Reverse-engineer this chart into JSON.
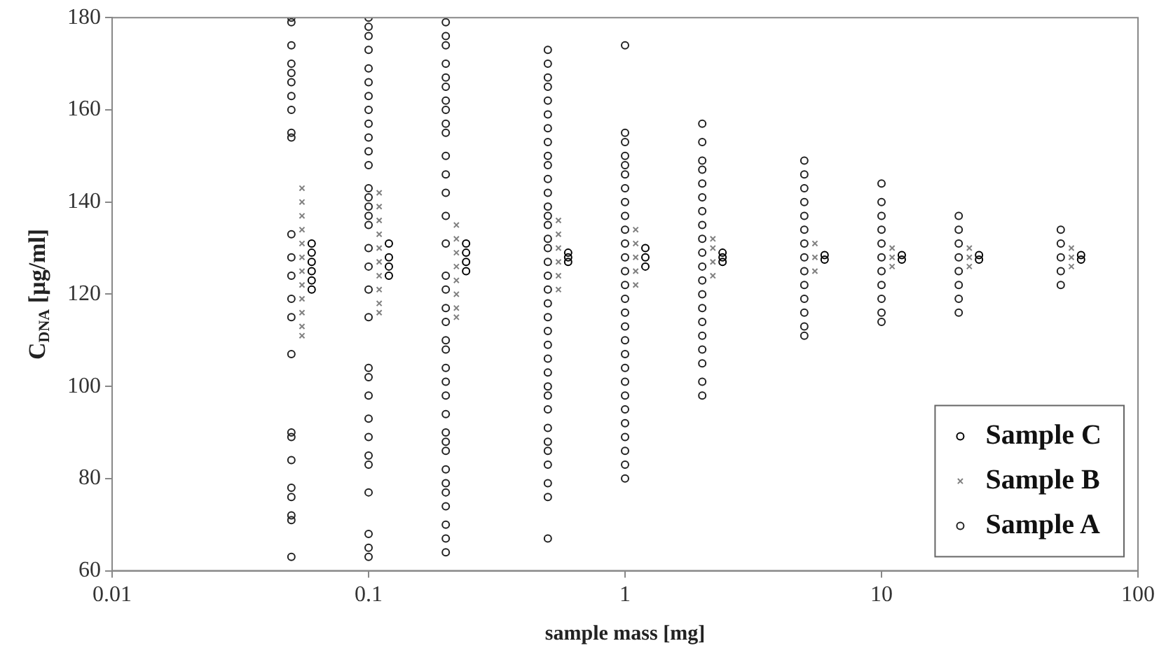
{
  "chart_data": {
    "type": "scatter",
    "xlabel": "sample mass [mg]",
    "ylabel": "C$_{DNA}$ [µg/ml]",
    "log": "x",
    "xlim": [
      0.01,
      100
    ],
    "xticks": [
      0.01,
      0.1,
      1,
      10,
      100
    ],
    "ylim": [
      60,
      180
    ],
    "yticks": [
      60,
      80,
      100,
      120,
      140,
      160,
      180
    ],
    "legend": "bottom right",
    "grid": false,
    "series": [
      {
        "name": "Sample C",
        "color": "#000000",
        "marker": "circle",
        "x": [
          0.06,
          0.06,
          0.06,
          0.06,
          0.06,
          0.06,
          0.12,
          0.12,
          0.12,
          0.12,
          0.24,
          0.24,
          0.24,
          0.24,
          0.6,
          0.6,
          0.6,
          1.2,
          1.2,
          1.2,
          2.4,
          2.4,
          2.4,
          6,
          6,
          12,
          12,
          24,
          24,
          60,
          60
        ],
        "values": [
          121,
          123,
          125,
          127,
          129,
          131,
          124,
          126,
          128,
          131,
          125,
          127,
          129,
          131,
          127,
          128,
          129,
          126,
          128,
          130,
          127,
          128,
          129,
          127.5,
          128.5,
          127.5,
          128.5,
          127.5,
          128.5,
          127.5,
          128.5
        ]
      },
      {
        "name": "Sample B",
        "color": "#808080",
        "marker": "cross",
        "x": [
          0.055,
          0.055,
          0.055,
          0.055,
          0.055,
          0.055,
          0.055,
          0.055,
          0.055,
          0.055,
          0.055,
          0.055,
          0.11,
          0.11,
          0.11,
          0.11,
          0.11,
          0.11,
          0.11,
          0.11,
          0.11,
          0.11,
          0.22,
          0.22,
          0.22,
          0.22,
          0.22,
          0.22,
          0.22,
          0.22,
          0.55,
          0.55,
          0.55,
          0.55,
          0.55,
          0.55,
          1.1,
          1.1,
          1.1,
          1.1,
          1.1,
          2.2,
          2.2,
          2.2,
          2.2,
          5.5,
          5.5,
          5.5,
          11,
          11,
          11,
          22,
          22,
          22,
          55,
          55,
          55
        ],
        "values": [
          143,
          140,
          137,
          134,
          131,
          128,
          125,
          122,
          119,
          116,
          113,
          111,
          142,
          139,
          136,
          133,
          130,
          127,
          124,
          121,
          118,
          116,
          135,
          132,
          129,
          126,
          123,
          120,
          117,
          115,
          136,
          133,
          130,
          127,
          124,
          121,
          134,
          131,
          128,
          125,
          122,
          132,
          130,
          127,
          124,
          131,
          128,
          125,
          130,
          128,
          126,
          130,
          128,
          126,
          130,
          128,
          126
        ]
      },
      {
        "name": "Sample A",
        "color": "#222222",
        "marker": "circle",
        "x": [
          0.05,
          0.05,
          0.05,
          0.05,
          0.05,
          0.05,
          0.05,
          0.05,
          0.05,
          0.05,
          0.05,
          0.05,
          0.05,
          0.05,
          0.05,
          0.05,
          0.05,
          0.05,
          0.05,
          0.05,
          0.05,
          0.05,
          0.05,
          0.05,
          0.1,
          0.1,
          0.1,
          0.1,
          0.1,
          0.1,
          0.1,
          0.1,
          0.1,
          0.1,
          0.1,
          0.1,
          0.1,
          0.1,
          0.1,
          0.1,
          0.1,
          0.1,
          0.1,
          0.1,
          0.1,
          0.1,
          0.1,
          0.1,
          0.1,
          0.1,
          0.1,
          0.1,
          0.1,
          0.1,
          0.1,
          0.1,
          0.2,
          0.2,
          0.2,
          0.2,
          0.2,
          0.2,
          0.2,
          0.2,
          0.2,
          0.2,
          0.2,
          0.2,
          0.2,
          0.2,
          0.2,
          0.2,
          0.2,
          0.2,
          0.2,
          0.2,
          0.2,
          0.2,
          0.2,
          0.2,
          0.2,
          0.2,
          0.2,
          0.2,
          0.2,
          0.2,
          0.2,
          0.2,
          0.2,
          0.2,
          0.2,
          0.5,
          0.5,
          0.5,
          0.5,
          0.5,
          0.5,
          0.5,
          0.5,
          0.5,
          0.5,
          0.5,
          0.5,
          0.5,
          0.5,
          0.5,
          0.5,
          0.5,
          0.5,
          0.5,
          0.5,
          0.5,
          0.5,
          0.5,
          0.5,
          0.5,
          0.5,
          0.5,
          0.5,
          0.5,
          0.5,
          0.5,
          0.5,
          0.5,
          0.5,
          0.5,
          0.5,
          1,
          1,
          1,
          1,
          1,
          1,
          1,
          1,
          1,
          1,
          1,
          1,
          1,
          1,
          1,
          1,
          1,
          1,
          1,
          1,
          1,
          1,
          1,
          1,
          1,
          1,
          1,
          1,
          2,
          2,
          2,
          2,
          2,
          2,
          2,
          2,
          2,
          2,
          2,
          2,
          2,
          2,
          2,
          2,
          2,
          2,
          2,
          2,
          5,
          5,
          5,
          5,
          5,
          5,
          5,
          5,
          5,
          5,
          5,
          5,
          5,
          5,
          10,
          10,
          10,
          10,
          10,
          10,
          10,
          10,
          10,
          10,
          10,
          20,
          20,
          20,
          20,
          20,
          20,
          20,
          20,
          50,
          50,
          50,
          50,
          50
        ],
        "values": [
          180,
          179,
          174,
          170,
          168,
          166,
          163,
          160,
          155,
          154,
          133,
          128,
          124,
          119,
          115,
          107,
          90,
          89,
          84,
          78,
          76,
          72,
          71,
          63,
          180,
          178,
          176,
          173,
          169,
          166,
          163,
          160,
          157,
          154,
          151,
          148,
          143,
          141,
          139,
          137,
          135,
          130,
          126,
          121,
          115,
          104,
          102,
          98,
          93,
          89,
          85,
          83,
          77,
          68,
          65,
          63,
          179,
          176,
          174,
          170,
          167,
          165,
          162,
          160,
          157,
          155,
          150,
          146,
          142,
          137,
          131,
          124,
          121,
          117,
          114,
          110,
          108,
          104,
          101,
          98,
          94,
          90,
          88,
          86,
          82,
          79,
          77,
          74,
          70,
          67,
          64,
          173,
          170,
          167,
          165,
          162,
          159,
          156,
          153,
          150,
          148,
          145,
          142,
          139,
          137,
          135,
          132,
          130,
          127,
          124,
          121,
          118,
          115,
          112,
          109,
          106,
          103,
          100,
          98,
          95,
          91,
          88,
          86,
          83,
          79,
          76,
          67,
          174,
          155,
          153,
          150,
          148,
          146,
          143,
          140,
          137,
          134,
          131,
          128,
          125,
          122,
          119,
          116,
          113,
          110,
          107,
          104,
          101,
          98,
          95,
          92,
          89,
          86,
          83,
          80,
          157,
          153,
          149,
          147,
          144,
          141,
          138,
          135,
          132,
          129,
          126,
          123,
          120,
          117,
          114,
          111,
          108,
          105,
          101,
          98,
          149,
          146,
          143,
          140,
          137,
          134,
          131,
          128,
          125,
          122,
          119,
          116,
          113,
          111,
          144,
          140,
          137,
          134,
          131,
          128,
          125,
          122,
          119,
          116,
          114,
          137,
          134,
          131,
          128,
          125,
          122,
          119,
          116,
          134,
          131,
          128,
          125,
          122
        ]
      }
    ]
  }
}
